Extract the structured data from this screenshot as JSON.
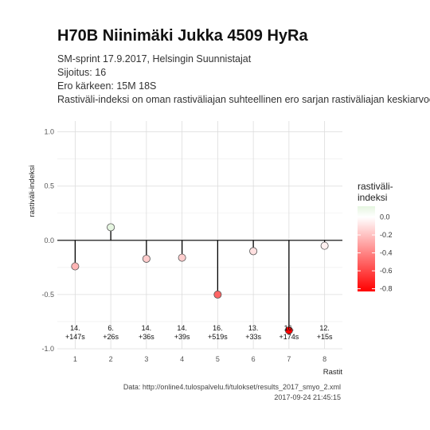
{
  "header": {
    "title": "H70B Niinimäki Jukka 4509 HyRa",
    "subtitle_lines": [
      "SM-sprint 17.9.2017, Helsingin Suunnistajat",
      "Sijoitus: 16",
      "Ero kärkeen: 15M 18S",
      "Rastiväli-indeksi on oman rastiväliajan suhteellinen ero sarjan rastiväliajan keskiarvoon"
    ]
  },
  "caption": {
    "source": "Data: http://online4.tulospalvelu.fi/tulokset/results_2017_smyo_2.xml",
    "timestamp": "2017-09-24 21:45:15"
  },
  "chart_data": {
    "type": "scatter",
    "style": "lollipop",
    "xlabel": "Rastit",
    "ylabel": "rastiväli-indeksi",
    "x": [
      1,
      2,
      3,
      4,
      5,
      6,
      7,
      8
    ],
    "values": [
      -0.24,
      0.12,
      -0.17,
      -0.16,
      -0.5,
      -0.1,
      -0.83,
      -0.05
    ],
    "point_labels": [
      [
        "14.",
        "+147s"
      ],
      [
        "6.",
        "+26s"
      ],
      [
        "14.",
        "+36s"
      ],
      [
        "14.",
        "+39s"
      ],
      [
        "16.",
        "+519s"
      ],
      [
        "13.",
        "+33s"
      ],
      [
        "16.",
        "+174s"
      ],
      [
        "12.",
        "+15s"
      ]
    ],
    "xlim": [
      0.5,
      8.5
    ],
    "ylim": [
      -1.0,
      1.1
    ],
    "y_ticks": [
      -1.0,
      -0.5,
      0.0,
      0.5,
      1.0
    ],
    "y_tick_labels": [
      "-1.0",
      "-0.5",
      "0.0",
      "0.5",
      "1.0"
    ],
    "x_tick_labels": [
      "1",
      "2",
      "3",
      "4",
      "5",
      "6",
      "7",
      "8"
    ],
    "grid": true,
    "legend": {
      "title_lines": [
        "rastiväli-",
        "indeksi"
      ],
      "type": "colorbar",
      "position": "right",
      "range": [
        -0.83,
        0.12
      ],
      "ticks": [
        0.0,
        -0.2,
        -0.4,
        -0.6,
        -0.8
      ],
      "tick_labels": [
        "0.0",
        "-0.2",
        "-0.4",
        "-0.6",
        "-0.8"
      ],
      "color_low": "#ff0000",
      "color_mid": "#ffffff",
      "color_high": "#e5f5e0"
    }
  }
}
